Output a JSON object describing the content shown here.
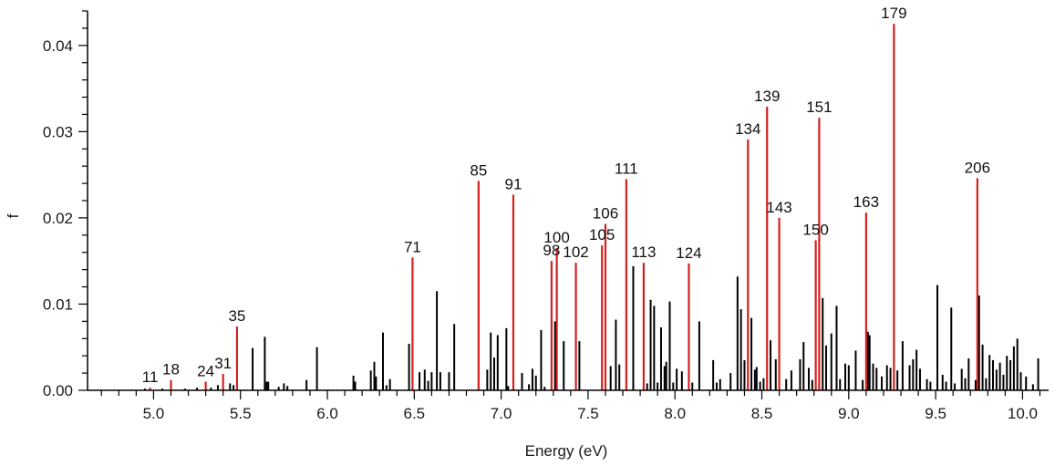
{
  "chart_data": {
    "type": "stick-spectrum",
    "xlabel": "Energy (eV)",
    "ylabel": "f",
    "xlim": [
      4.62,
      10.15
    ],
    "ylim": [
      0,
      0.044
    ],
    "x_ticks": [
      "5.0",
      "5.5",
      "6.0",
      "6.5",
      "7.0",
      "7.5",
      "8.0",
      "8.5",
      "9.0",
      "9.5",
      "10.0"
    ],
    "x_tick_values": [
      5.0,
      5.5,
      6.0,
      6.5,
      7.0,
      7.5,
      8.0,
      8.5,
      9.0,
      9.5,
      10.0
    ],
    "y_ticks": [
      "0.00",
      "0.01",
      "0.02",
      "0.03",
      "0.04"
    ],
    "y_tick_values": [
      0.0,
      0.01,
      0.02,
      0.03,
      0.04
    ],
    "grid": false,
    "colors": {
      "background_lines": "#000000",
      "labeled_lines": "#d62020",
      "axis": "#000000"
    },
    "labeled_lines": [
      {
        "label": "11",
        "x": 4.98,
        "y": 0.0003
      },
      {
        "label": "18",
        "x": 5.1,
        "y": 0.0012
      },
      {
        "label": "24",
        "x": 5.3,
        "y": 0.001
      },
      {
        "label": "31",
        "x": 5.4,
        "y": 0.0019
      },
      {
        "label": "35",
        "x": 5.48,
        "y": 0.0074
      },
      {
        "label": "71",
        "x": 6.49,
        "y": 0.0154
      },
      {
        "label": "85",
        "x": 6.87,
        "y": 0.0243
      },
      {
        "label": "91",
        "x": 7.07,
        "y": 0.0227
      },
      {
        "label": "98",
        "x": 7.29,
        "y": 0.015
      },
      {
        "label": "100",
        "x": 7.32,
        "y": 0.0165
      },
      {
        "label": "102",
        "x": 7.43,
        "y": 0.0148
      },
      {
        "label": "105",
        "x": 7.58,
        "y": 0.0168
      },
      {
        "label": "106",
        "x": 7.6,
        "y": 0.0193
      },
      {
        "label": "111",
        "x": 7.72,
        "y": 0.0245
      },
      {
        "label": "113",
        "x": 7.82,
        "y": 0.0148
      },
      {
        "label": "124",
        "x": 8.08,
        "y": 0.0147
      },
      {
        "label": "134",
        "x": 8.42,
        "y": 0.0291
      },
      {
        "label": "139",
        "x": 8.53,
        "y": 0.0329
      },
      {
        "label": "143",
        "x": 8.6,
        "y": 0.02
      },
      {
        "label": "150",
        "x": 8.81,
        "y": 0.0174
      },
      {
        "label": "151",
        "x": 8.83,
        "y": 0.0316
      },
      {
        "label": "163",
        "x": 9.1,
        "y": 0.0206
      },
      {
        "label": "179",
        "x": 9.26,
        "y": 0.0425
      },
      {
        "label": "206",
        "x": 9.74,
        "y": 0.0246
      }
    ],
    "unlabeled_lines": [
      [
        4.95,
        0.0002
      ],
      [
        5.05,
        0.0002
      ],
      [
        5.18,
        0.0002
      ],
      [
        5.25,
        0.0003
      ],
      [
        5.33,
        0.0003
      ],
      [
        5.37,
        0.0006
      ],
      [
        5.44,
        0.0008
      ],
      [
        5.46,
        0.0006
      ],
      [
        5.57,
        0.0049
      ],
      [
        5.64,
        0.0062
      ],
      [
        5.65,
        0.001
      ],
      [
        5.66,
        0.001
      ],
      [
        5.72,
        0.0004
      ],
      [
        5.75,
        0.0008
      ],
      [
        5.77,
        0.0005
      ],
      [
        5.88,
        0.0012
      ],
      [
        5.94,
        0.005
      ],
      [
        6.15,
        0.0017
      ],
      [
        6.16,
        0.001
      ],
      [
        6.25,
        0.0023
      ],
      [
        6.27,
        0.0033
      ],
      [
        6.28,
        0.0016
      ],
      [
        6.32,
        0.0067
      ],
      [
        6.34,
        0.0006
      ],
      [
        6.36,
        0.0013
      ],
      [
        6.47,
        0.0054
      ],
      [
        6.53,
        0.0021
      ],
      [
        6.56,
        0.0024
      ],
      [
        6.58,
        0.0011
      ],
      [
        6.6,
        0.0021
      ],
      [
        6.63,
        0.0115
      ],
      [
        6.65,
        0.0021
      ],
      [
        6.7,
        0.0021
      ],
      [
        6.73,
        0.0077
      ],
      [
        6.92,
        0.0024
      ],
      [
        6.94,
        0.0067
      ],
      [
        6.96,
        0.0038
      ],
      [
        6.98,
        0.0064
      ],
      [
        7.03,
        0.0072
      ],
      [
        7.04,
        0.0005
      ],
      [
        7.12,
        0.002
      ],
      [
        7.16,
        0.0007
      ],
      [
        7.18,
        0.0025
      ],
      [
        7.2,
        0.0017
      ],
      [
        7.23,
        0.007
      ],
      [
        7.25,
        0.0004
      ],
      [
        7.31,
        0.008
      ],
      [
        7.36,
        0.0057
      ],
      [
        7.45,
        0.0057
      ],
      [
        7.63,
        0.0028
      ],
      [
        7.66,
        0.0082
      ],
      [
        7.68,
        0.003
      ],
      [
        7.76,
        0.0144
      ],
      [
        7.84,
        0.0008
      ],
      [
        7.86,
        0.0105
      ],
      [
        7.88,
        0.0098
      ],
      [
        7.9,
        0.0009
      ],
      [
        7.92,
        0.0073
      ],
      [
        7.94,
        0.0028
      ],
      [
        7.95,
        0.0033
      ],
      [
        7.97,
        0.0103
      ],
      [
        7.99,
        0.0009
      ],
      [
        8.01,
        0.0025
      ],
      [
        8.04,
        0.0022
      ],
      [
        8.1,
        0.0009
      ],
      [
        8.14,
        0.008
      ],
      [
        8.22,
        0.0035
      ],
      [
        8.24,
        0.0009
      ],
      [
        8.26,
        0.0013
      ],
      [
        8.32,
        0.002
      ],
      [
        8.36,
        0.0132
      ],
      [
        8.38,
        0.0094
      ],
      [
        8.4,
        0.0035
      ],
      [
        8.44,
        0.0084
      ],
      [
        8.46,
        0.0024
      ],
      [
        8.47,
        0.0027
      ],
      [
        8.49,
        0.001
      ],
      [
        8.51,
        0.0014
      ],
      [
        8.55,
        0.0058
      ],
      [
        8.58,
        0.0036
      ],
      [
        8.64,
        0.0013
      ],
      [
        8.67,
        0.0023
      ],
      [
        8.72,
        0.0036
      ],
      [
        8.74,
        0.0056
      ],
      [
        8.77,
        0.0026
      ],
      [
        8.79,
        0.0012
      ],
      [
        8.85,
        0.0107
      ],
      [
        8.87,
        0.0052
      ],
      [
        8.9,
        0.0066
      ],
      [
        8.93,
        0.0098
      ],
      [
        8.95,
        0.0013
      ],
      [
        8.98,
        0.0031
      ],
      [
        9.0,
        0.0029
      ],
      [
        9.04,
        0.0046
      ],
      [
        9.08,
        0.0012
      ],
      [
        9.11,
        0.0068
      ],
      [
        9.12,
        0.0064
      ],
      [
        9.14,
        0.0031
      ],
      [
        9.16,
        0.0026
      ],
      [
        9.19,
        0.0016
      ],
      [
        9.22,
        0.0029
      ],
      [
        9.24,
        0.0026
      ],
      [
        9.28,
        0.0023
      ],
      [
        9.31,
        0.0057
      ],
      [
        9.35,
        0.0029
      ],
      [
        9.37,
        0.0036
      ],
      [
        9.39,
        0.0047
      ],
      [
        9.41,
        0.0025
      ],
      [
        9.45,
        0.0013
      ],
      [
        9.47,
        0.001
      ],
      [
        9.51,
        0.0122
      ],
      [
        9.54,
        0.0018
      ],
      [
        9.56,
        0.001
      ],
      [
        9.59,
        0.0096
      ],
      [
        9.61,
        0.0008
      ],
      [
        9.65,
        0.0025
      ],
      [
        9.67,
        0.0014
      ],
      [
        9.69,
        0.0037
      ],
      [
        9.73,
        0.0012
      ],
      [
        9.75,
        0.011
      ],
      [
        9.77,
        0.0053
      ],
      [
        9.79,
        0.0014
      ],
      [
        9.81,
        0.0041
      ],
      [
        9.83,
        0.0035
      ],
      [
        9.85,
        0.0024
      ],
      [
        9.87,
        0.0032
      ],
      [
        9.89,
        0.0018
      ],
      [
        9.91,
        0.004
      ],
      [
        9.93,
        0.0035
      ],
      [
        9.95,
        0.0051
      ],
      [
        9.97,
        0.006
      ],
      [
        9.99,
        0.0021
      ],
      [
        10.02,
        0.0016
      ],
      [
        10.06,
        0.0007
      ],
      [
        10.09,
        0.0037
      ]
    ]
  }
}
